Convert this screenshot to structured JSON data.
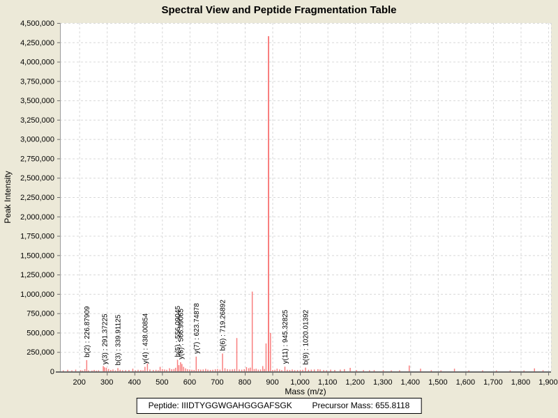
{
  "title": "Spectral View and Peptide Fragmentation Table",
  "footer": {
    "peptide_label": "Peptide:",
    "peptide_sequence": "IIIDTYGGWGAHGGGAFSGK",
    "precursor_label": "Precursor Mass:",
    "precursor_value": "655.8118"
  },
  "colors": {
    "background": "#ece9d8",
    "plot_background": "#ffffff",
    "grid": "#d8d8d8",
    "axis_line": "#6b6b6b",
    "border": "#9a9a9a",
    "peak": "#f87f7f",
    "text": "#000000"
  },
  "chart_data": {
    "type": "bar",
    "title": "Spectral View and Peptide Fragmentation Table",
    "xlabel": "Mass (m/z)",
    "ylabel": "Peak Intensity",
    "xlim": [
      130,
      1910
    ],
    "ylim": [
      0,
      4500000
    ],
    "x_ticks": [
      200,
      300,
      400,
      500,
      600,
      700,
      800,
      900,
      1000,
      1100,
      1200,
      1300,
      1400,
      1500,
      1600,
      1700,
      1800,
      1900
    ],
    "y_tick_step": 250000,
    "grid": true,
    "legend": false,
    "bar_color": "#f87f7f",
    "annotations": [
      {
        "label": "b(2) : 226.87909",
        "mz": 226.87909
      },
      {
        "label": "y(3) : 291.37225",
        "mz": 291.37225
      },
      {
        "label": "b(3) : 339.91125",
        "mz": 339.91125
      },
      {
        "label": "y(4) : 438.00854",
        "mz": 438.00854
      },
      {
        "label": "b(5) : 556.09045",
        "mz": 556.09045
      },
      {
        "label": "y(6) : 566.99065",
        "mz": 566.99065
      },
      {
        "label": "y(7) : 623.74878",
        "mz": 623.74878
      },
      {
        "label": "b(6) : 719.26892",
        "mz": 719.26892
      },
      {
        "label": "y(11) : 945.32825",
        "mz": 945.32825
      },
      {
        "label": "b(9) : 1020.01392",
        "mz": 1020.01392
      }
    ],
    "peaks": [
      {
        "mz": 142,
        "i": 12000
      },
      {
        "mz": 158,
        "i": 20000
      },
      {
        "mz": 173,
        "i": 12000
      },
      {
        "mz": 187,
        "i": 22000
      },
      {
        "mz": 205,
        "i": 15000
      },
      {
        "mz": 212,
        "i": 10000
      },
      {
        "mz": 220,
        "i": 28000
      },
      {
        "mz": 226.87909,
        "i": 145000,
        "label": "b(2) : 226.87909"
      },
      {
        "mz": 233,
        "i": 12000
      },
      {
        "mz": 246,
        "i": 10000
      },
      {
        "mz": 254,
        "i": 18000
      },
      {
        "mz": 262,
        "i": 9000
      },
      {
        "mz": 270,
        "i": 14000
      },
      {
        "mz": 287,
        "i": 68000
      },
      {
        "mz": 291.37225,
        "i": 52000,
        "label": "y(3) : 291.37225"
      },
      {
        "mz": 298,
        "i": 46000
      },
      {
        "mz": 306,
        "i": 30000
      },
      {
        "mz": 314,
        "i": 18000
      },
      {
        "mz": 322,
        "i": 24000
      },
      {
        "mz": 331,
        "i": 12000
      },
      {
        "mz": 339.91125,
        "i": 42000,
        "label": "b(3) : 339.91125"
      },
      {
        "mz": 348,
        "i": 20000
      },
      {
        "mz": 357,
        "i": 14000
      },
      {
        "mz": 368,
        "i": 15000
      },
      {
        "mz": 380,
        "i": 17000
      },
      {
        "mz": 394,
        "i": 34000
      },
      {
        "mz": 404,
        "i": 12000
      },
      {
        "mz": 413,
        "i": 20000
      },
      {
        "mz": 423,
        "i": 16000
      },
      {
        "mz": 431,
        "i": 14000
      },
      {
        "mz": 438.00854,
        "i": 58000,
        "label": "y(4) : 438.00854"
      },
      {
        "mz": 447,
        "i": 100000
      },
      {
        "mz": 456,
        "i": 24000
      },
      {
        "mz": 468,
        "i": 18000
      },
      {
        "mz": 478,
        "i": 20000
      },
      {
        "mz": 486,
        "i": 14000
      },
      {
        "mz": 493,
        "i": 58000
      },
      {
        "mz": 501,
        "i": 30000
      },
      {
        "mz": 509,
        "i": 24000
      },
      {
        "mz": 517,
        "i": 20000
      },
      {
        "mz": 527,
        "i": 40000
      },
      {
        "mz": 535,
        "i": 28000
      },
      {
        "mz": 543,
        "i": 30000
      },
      {
        "mz": 549,
        "i": 46000
      },
      {
        "mz": 556.09045,
        "i": 150000,
        "label": "b(5) : 556.09045"
      },
      {
        "mz": 561,
        "i": 80000
      },
      {
        "mz": 566.99065,
        "i": 118000,
        "label": "y(6) : 566.99065"
      },
      {
        "mz": 572,
        "i": 95000
      },
      {
        "mz": 578,
        "i": 58000
      },
      {
        "mz": 585,
        "i": 38000
      },
      {
        "mz": 592,
        "i": 28000
      },
      {
        "mz": 600,
        "i": 24000
      },
      {
        "mz": 608,
        "i": 20000
      },
      {
        "mz": 616,
        "i": 18000
      },
      {
        "mz": 623.74878,
        "i": 190000,
        "label": "y(7) : 623.74878"
      },
      {
        "mz": 632,
        "i": 28000
      },
      {
        "mz": 640,
        "i": 22000
      },
      {
        "mz": 649,
        "i": 24000
      },
      {
        "mz": 658,
        "i": 32000
      },
      {
        "mz": 666,
        "i": 22000
      },
      {
        "mz": 675,
        "i": 18000
      },
      {
        "mz": 684,
        "i": 20000
      },
      {
        "mz": 693,
        "i": 26000
      },
      {
        "mz": 701,
        "i": 30000
      },
      {
        "mz": 710,
        "i": 22000
      },
      {
        "mz": 719.26892,
        "i": 230000,
        "label": "b(6) : 719.26892"
      },
      {
        "mz": 728,
        "i": 40000
      },
      {
        "mz": 737,
        "i": 28000
      },
      {
        "mz": 746,
        "i": 24000
      },
      {
        "mz": 755,
        "i": 26000
      },
      {
        "mz": 763,
        "i": 30000
      },
      {
        "mz": 771,
        "i": 430000
      },
      {
        "mz": 780,
        "i": 24000
      },
      {
        "mz": 789,
        "i": 22000
      },
      {
        "mz": 798,
        "i": 28000
      },
      {
        "mz": 806,
        "i": 55000
      },
      {
        "mz": 814,
        "i": 40000
      },
      {
        "mz": 820,
        "i": 48000
      },
      {
        "mz": 827,
        "i": 1030000
      },
      {
        "mz": 834,
        "i": 30000
      },
      {
        "mz": 841,
        "i": 34000
      },
      {
        "mz": 849,
        "i": 22000
      },
      {
        "mz": 857,
        "i": 24000
      },
      {
        "mz": 865,
        "i": 68000
      },
      {
        "mz": 871,
        "i": 30000
      },
      {
        "mz": 877,
        "i": 360000
      },
      {
        "mz": 886,
        "i": 4330000
      },
      {
        "mz": 893,
        "i": 495000
      },
      {
        "mz": 901,
        "i": 18000
      },
      {
        "mz": 909,
        "i": 20000
      },
      {
        "mz": 917,
        "i": 34000
      },
      {
        "mz": 926,
        "i": 24000
      },
      {
        "mz": 934,
        "i": 16000
      },
      {
        "mz": 945.32825,
        "i": 60000,
        "label": "y(11) : 945.32825"
      },
      {
        "mz": 954,
        "i": 20000
      },
      {
        "mz": 963,
        "i": 18000
      },
      {
        "mz": 972,
        "i": 24000
      },
      {
        "mz": 981,
        "i": 16000
      },
      {
        "mz": 991,
        "i": 17000
      },
      {
        "mz": 1001,
        "i": 19000
      },
      {
        "mz": 1010,
        "i": 20000
      },
      {
        "mz": 1020.01392,
        "i": 48000,
        "label": "b(9) : 1020.01392"
      },
      {
        "mz": 1031,
        "i": 20000
      },
      {
        "mz": 1041,
        "i": 22000
      },
      {
        "mz": 1052,
        "i": 24000
      },
      {
        "mz": 1065,
        "i": 28000
      },
      {
        "mz": 1073,
        "i": 24000
      },
      {
        "mz": 1086,
        "i": 16000
      },
      {
        "mz": 1096,
        "i": 14000
      },
      {
        "mz": 1111,
        "i": 22000
      },
      {
        "mz": 1126,
        "i": 18000
      },
      {
        "mz": 1146,
        "i": 22000
      },
      {
        "mz": 1161,
        "i": 28000
      },
      {
        "mz": 1182,
        "i": 45000
      },
      {
        "mz": 1205,
        "i": 15000
      },
      {
        "mz": 1230,
        "i": 16000
      },
      {
        "mz": 1252,
        "i": 13000
      },
      {
        "mz": 1269,
        "i": 15000
      },
      {
        "mz": 1302,
        "i": 14000
      },
      {
        "mz": 1331,
        "i": 12000
      },
      {
        "mz": 1361,
        "i": 13000
      },
      {
        "mz": 1396,
        "i": 75000
      },
      {
        "mz": 1437,
        "i": 34000
      },
      {
        "mz": 1476,
        "i": 14000
      },
      {
        "mz": 1511,
        "i": 12000
      },
      {
        "mz": 1560,
        "i": 34000
      },
      {
        "mz": 1612,
        "i": 11000
      },
      {
        "mz": 1662,
        "i": 12000
      },
      {
        "mz": 1712,
        "i": 11000
      },
      {
        "mz": 1762,
        "i": 12000
      },
      {
        "mz": 1812,
        "i": 11000
      },
      {
        "mz": 1850,
        "i": 38000
      },
      {
        "mz": 1881,
        "i": 14000
      }
    ]
  }
}
